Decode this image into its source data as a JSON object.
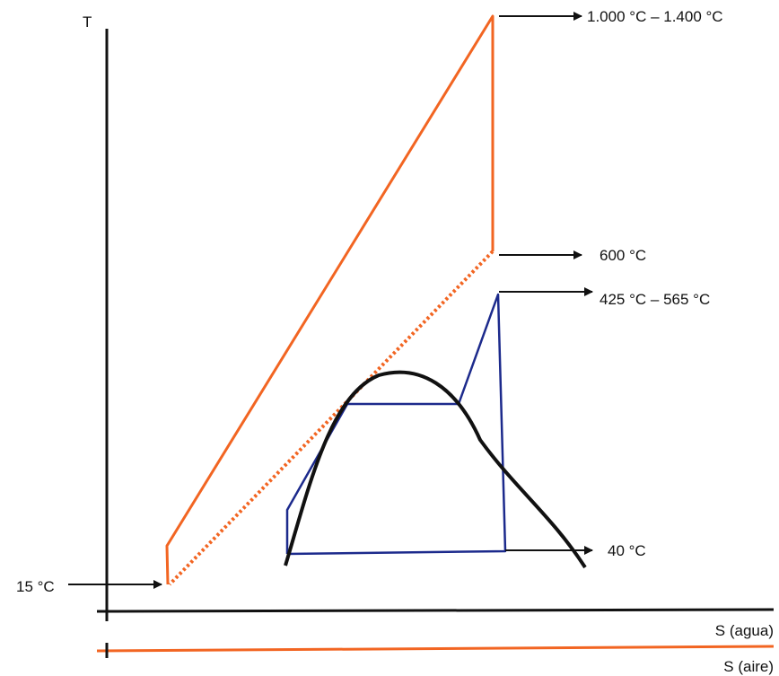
{
  "axis": {
    "y_label": "T",
    "x_label_water": "S (agua)",
    "x_label_air": "S (aire)"
  },
  "labels": {
    "t_gas_max": "1.000 °C – 1.400 °C",
    "t_gas_exhaust": "600 °C",
    "t_steam": "425 °C – 565 °C",
    "t_condenser": "40 °C",
    "t_ambient": "15 °C"
  },
  "colors": {
    "gas_cycle": "#f26522",
    "steam_cycle": "#1c2a8c",
    "saturation_dome": "#111111",
    "axes": "#111111",
    "arrows": "#111111"
  }
}
